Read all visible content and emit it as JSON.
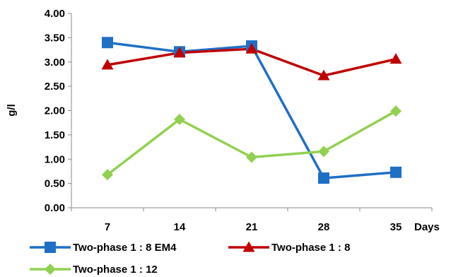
{
  "chart_data": {
    "type": "line",
    "x": [
      7,
      14,
      21,
      28,
      35
    ],
    "x_tick_labels": [
      "7",
      "14",
      "21",
      "28",
      "35"
    ],
    "xlabel": "Days",
    "ylabel": "g/l",
    "ylim": [
      0,
      4
    ],
    "y_tick_labels": [
      "0.00",
      "0.50",
      "1.00",
      "1.50",
      "2.00",
      "2.50",
      "3.00",
      "3.50",
      "4.00"
    ],
    "y_ticks": [
      0,
      0.5,
      1,
      1.5,
      2,
      2.5,
      3,
      3.5,
      4
    ],
    "grid": false,
    "legend_position": "bottom",
    "series": [
      {
        "name": "Two-phase 1 : 8 EM4",
        "values": [
          3.4,
          3.21,
          3.33,
          0.61,
          0.73
        ],
        "color": "#1F6FC5",
        "marker": "square"
      },
      {
        "name": "Two-phase 1 : 8",
        "values": [
          2.94,
          3.19,
          3.27,
          2.72,
          3.06
        ],
        "color": "#C00000",
        "marker": "triangle"
      },
      {
        "name": "Two-phase 1 : 12",
        "values": [
          0.68,
          1.82,
          1.04,
          1.16,
          1.99
        ],
        "color": "#92D050",
        "marker": "diamond"
      }
    ]
  }
}
